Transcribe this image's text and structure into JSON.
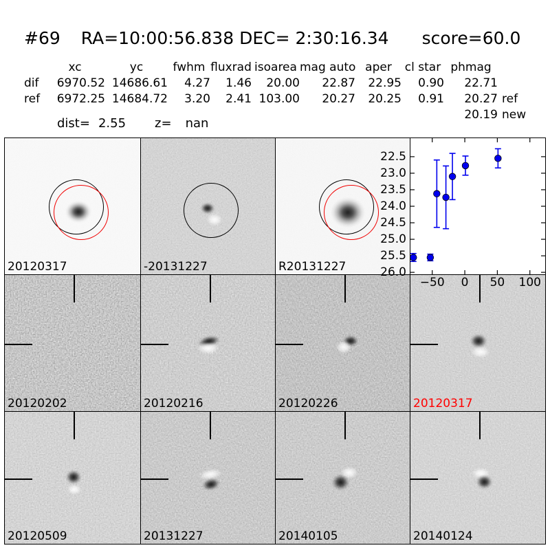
{
  "header": {
    "id": "#69",
    "coords": "RA=10:00:56.838 DEC= 2:30:16.34",
    "score": "score=60.0"
  },
  "metrics_table": {
    "columns": [
      "xc",
      "yc",
      "fwhm",
      "fluxrad",
      "isoarea",
      "mag auto",
      "aper",
      "cl star",
      "phmag"
    ],
    "rows": [
      {
        "label": "dif",
        "values": [
          "6970.52",
          "14686.61",
          "4.27",
          "1.46",
          "20.00",
          "22.87",
          "22.95",
          "0.90",
          "22.71"
        ],
        "suffix": ""
      },
      {
        "label": "ref",
        "values": [
          "6972.25",
          "14684.72",
          "3.20",
          "2.41",
          "103.00",
          "20.27",
          "20.25",
          "0.91",
          "20.27"
        ],
        "suffix": "ref"
      }
    ],
    "extra": {
      "phmag": "20.19",
      "suffix": "new"
    },
    "dist": {
      "label": "dist=",
      "value": "2.55"
    },
    "z": {
      "label": "z=",
      "value": "nan"
    }
  },
  "cutouts": [
    {
      "label": "20120317",
      "color": "#000000"
    },
    {
      "label": "-20131227",
      "color": "#000000"
    },
    {
      "label": "R20131227",
      "color": "#000000"
    },
    {
      "label": "20120202",
      "color": "#000000"
    },
    {
      "label": "20120216",
      "color": "#000000"
    },
    {
      "label": "20120226",
      "color": "#000000"
    },
    {
      "label": "20120317",
      "color": "#ff0000"
    },
    {
      "label": "20120509",
      "color": "#000000"
    },
    {
      "label": "20131227",
      "color": "#000000"
    },
    {
      "label": "20140105",
      "color": "#000000"
    },
    {
      "label": "20140124",
      "color": "#000000"
    }
  ],
  "chart_data": {
    "type": "scatter",
    "title": "",
    "xlabel": "",
    "ylabel": "",
    "description": "light curve: magnitude vs epoch in days, y-axis inverted (brighter up)",
    "x": [
      -79,
      -53,
      -43,
      -29,
      -19,
      1,
      51
    ],
    "y": [
      25.55,
      25.55,
      23.62,
      23.73,
      23.1,
      22.77,
      22.55
    ],
    "yerr": [
      0.12,
      0.1,
      1.02,
      0.95,
      0.7,
      0.29,
      0.29
    ],
    "xticks": [
      -50,
      0,
      50,
      100
    ],
    "xtick_labels": [
      "−50",
      "0",
      "50",
      "100"
    ],
    "yticks": [
      22.5,
      23.0,
      23.5,
      24.0,
      24.5,
      25.0,
      25.5,
      26.0
    ],
    "ytick_labels": [
      "22.5",
      "23.0",
      "23.5",
      "24.0",
      "24.5",
      "25.0",
      "25.5",
      "26.0"
    ],
    "xlim": [
      -83.5,
      123.5
    ],
    "ylim": [
      26.06,
      21.94
    ],
    "grid": false,
    "legend": false,
    "marker_color": "#0000ee",
    "marker_edge_color": "#000000"
  }
}
